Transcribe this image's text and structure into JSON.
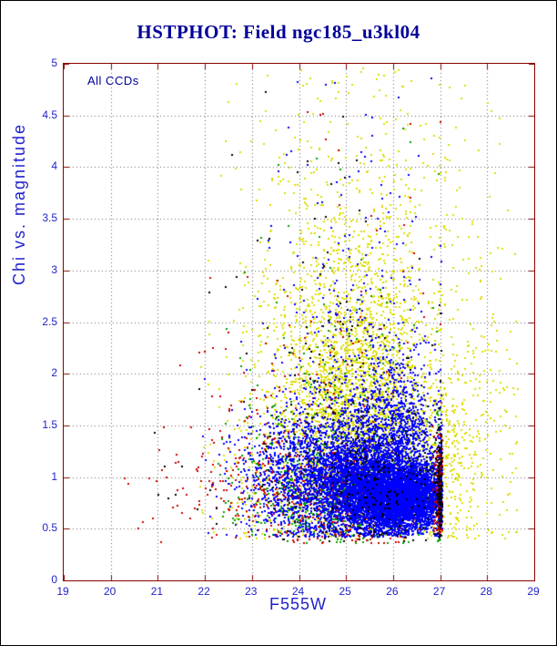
{
  "page": {
    "background": "#ffffff",
    "border_color": "#000000"
  },
  "chart_data": {
    "type": "scatter",
    "title": "HSTPHOT: Field ngc185_u3kl04",
    "annotation": "All CCDs",
    "xlabel": "F555W",
    "ylabel": "Chi vs. magnitude",
    "xlim": [
      19,
      29
    ],
    "ylim": [
      0,
      5
    ],
    "xticks": [
      19,
      20,
      21,
      22,
      23,
      24,
      25,
      26,
      27,
      28,
      29
    ],
    "yticks": [
      0,
      0.5,
      1,
      1.5,
      2,
      2.5,
      3,
      3.5,
      4,
      4.5,
      5
    ],
    "grid": "dotted",
    "legend": "none",
    "point_size": 2,
    "seed": 42,
    "colors": {
      "frame": "#8b0000",
      "grid": "#666666",
      "title": "#000099",
      "axis_text": "#2222cc",
      "annotation_text": "#000099"
    },
    "description": "Chi vs. magnitude quality diagnostic scatter for HST field ngc185_u3kl04; dense locus of stars at chi 0.5-1.5 between F555W 24-27 with sharp faint cutoff at F555W ~27; one chip (yellow) shows an extended high-chi plume up to chi 5.",
    "series": [
      {
        "name": "chip-yellow",
        "color": "#dddd00",
        "xmin": 21.9,
        "xmax": 28.65,
        "ymin": 0.4,
        "ymax": 4.97,
        "clusters": [
          {
            "cx": 25.2,
            "cy": 1.75,
            "sx": 0.75,
            "sy": 0.45,
            "n": 1400
          },
          {
            "cx": 25.1,
            "cy": 2.5,
            "sx": 0.95,
            "sy": 0.6,
            "n": 750
          },
          {
            "cx": 25.2,
            "cy": 3.7,
            "sx": 1.15,
            "sy": 0.75,
            "n": 300
          },
          {
            "cx": 26.0,
            "cy": 1.15,
            "sx": 1.0,
            "sy": 0.35,
            "n": 650
          },
          {
            "cx": 27.35,
            "cy": 1.4,
            "sx": 0.65,
            "sy": 0.7,
            "n": 330
          },
          {
            "cx": 23.5,
            "cy": 1.6,
            "sx": 0.7,
            "sy": 0.8,
            "n": 220
          },
          {
            "cx": 27.6,
            "cy": 3.3,
            "sx": 0.55,
            "sy": 0.8,
            "n": 55
          },
          {
            "cx": 24.6,
            "cy": 0.8,
            "sx": 1.2,
            "sy": 0.25,
            "n": 300
          }
        ]
      },
      {
        "name": "chip-green",
        "color": "#00a000",
        "xmin": 22.2,
        "xmax": 27.0,
        "ymin": 0.36,
        "ymax": 4.5,
        "clusters": [
          {
            "cx": 25.3,
            "cy": 0.75,
            "sx": 0.95,
            "sy": 0.2,
            "n": 550
          },
          {
            "cx": 24.2,
            "cy": 1.0,
            "sx": 0.95,
            "sy": 0.35,
            "n": 280
          },
          {
            "cx": 24.9,
            "cy": 1.7,
            "sx": 1.1,
            "sy": 0.55,
            "n": 130
          },
          {
            "cx": 25.2,
            "cy": 3.0,
            "sx": 1.3,
            "sy": 0.85,
            "n": 25
          }
        ]
      },
      {
        "name": "chip-red",
        "color": "#d00000",
        "xmin": 20.0,
        "xmax": 27.05,
        "ymin": 0.36,
        "ymax": 4.6,
        "clusters": [
          {
            "cx": 25.0,
            "cy": 0.75,
            "sx": 1.15,
            "sy": 0.22,
            "n": 480
          },
          {
            "cx": 23.8,
            "cy": 1.05,
            "sx": 1.25,
            "sy": 0.4,
            "n": 240
          },
          {
            "cx": 24.2,
            "cy": 1.8,
            "sx": 1.5,
            "sy": 0.7,
            "n": 90
          },
          {
            "cx": 21.7,
            "cy": 0.85,
            "sx": 0.7,
            "sy": 0.25,
            "n": 18
          },
          {
            "cx": 25.3,
            "cy": 3.3,
            "sx": 1.2,
            "sy": 0.9,
            "n": 20
          }
        ]
      },
      {
        "name": "chip-blue",
        "color": "#0000ff",
        "xmin": 21.9,
        "xmax": 27.04,
        "ymin": 0.42,
        "ymax": 4.9,
        "clusters": [
          {
            "cx": 26.1,
            "cy": 0.8,
            "sx": 0.55,
            "sy": 0.15,
            "n": 4500
          },
          {
            "cx": 25.4,
            "cy": 0.95,
            "sx": 0.75,
            "sy": 0.25,
            "n": 3000
          },
          {
            "cx": 24.9,
            "cy": 1.1,
            "sx": 1.05,
            "sy": 0.4,
            "n": 1200
          },
          {
            "cx": 23.7,
            "cy": 0.95,
            "sx": 0.6,
            "sy": 0.3,
            "n": 320
          },
          {
            "cx": 26.1,
            "cy": 1.5,
            "sx": 0.45,
            "sy": 0.35,
            "n": 700
          },
          {
            "cx": 25.4,
            "cy": 2.2,
            "sx": 0.85,
            "sy": 0.65,
            "n": 200
          },
          {
            "cx": 25.0,
            "cy": 3.5,
            "sx": 1.1,
            "sy": 0.8,
            "n": 55
          }
        ]
      },
      {
        "name": "chip-red-faint-limit",
        "color": "#c00000",
        "xmin": 26.5,
        "xmax": 27.05,
        "ymin": 0.45,
        "ymax": 2.0,
        "clusters": [
          {
            "cx": 26.98,
            "cy": 0.9,
            "sx": 0.06,
            "sy": 0.28,
            "n": 120
          }
        ]
      },
      {
        "name": "chip-black",
        "color": "#000000",
        "xmin": 20.0,
        "xmax": 27.05,
        "ymin": 0.38,
        "ymax": 4.9,
        "clusters": [
          {
            "cx": 25.6,
            "cy": 0.95,
            "sx": 0.95,
            "sy": 0.3,
            "n": 260
          },
          {
            "cx": 27.0,
            "cy": 0.9,
            "sx": 0.05,
            "sy": 0.26,
            "n": 130
          },
          {
            "cx": 24.6,
            "cy": 1.6,
            "sx": 1.2,
            "sy": 0.75,
            "n": 110
          },
          {
            "cx": 24.8,
            "cy": 3.1,
            "sx": 1.2,
            "sy": 0.95,
            "n": 35
          },
          {
            "cx": 21.2,
            "cy": 0.9,
            "sx": 0.7,
            "sy": 0.3,
            "n": 8
          }
        ]
      }
    ]
  }
}
